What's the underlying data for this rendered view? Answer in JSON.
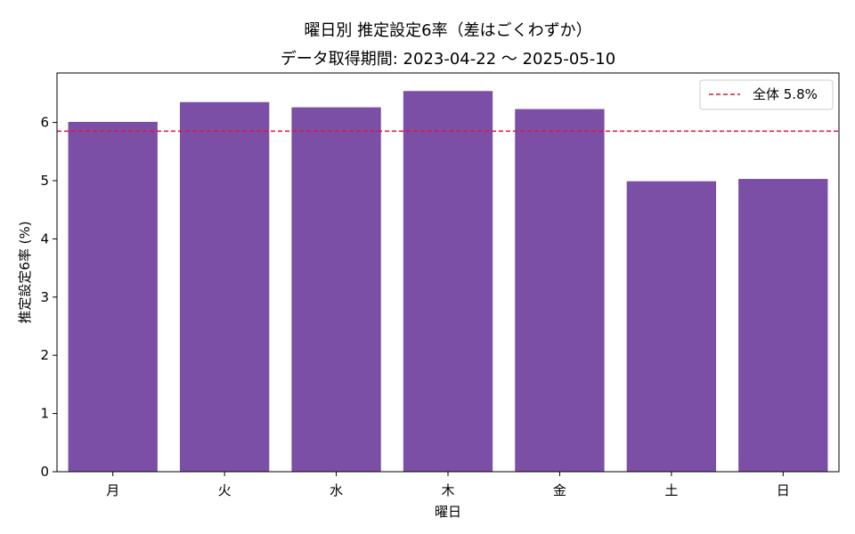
{
  "chart_data": {
    "type": "bar",
    "title": "曜日別 推定設定6率（差はごくわずか）",
    "subtitle": "データ取得期間: 2023-04-22 〜 2025-05-10",
    "xlabel": "曜日",
    "ylabel": "推定設定6率 (%)",
    "categories": [
      "月",
      "火",
      "水",
      "木",
      "金",
      "土",
      "日"
    ],
    "values": [
      6.01,
      6.35,
      6.26,
      6.54,
      6.23,
      4.99,
      5.03
    ],
    "ylim": [
      0,
      6.85
    ],
    "yticks": [
      0,
      1,
      2,
      3,
      4,
      5,
      6
    ],
    "bar_color": "#7b4fa6",
    "reference_line": {
      "value": 5.85,
      "label": "全体 5.8%",
      "color": "#dc143c",
      "style": "dashed"
    },
    "legend_position": "top-right",
    "grid": false
  }
}
